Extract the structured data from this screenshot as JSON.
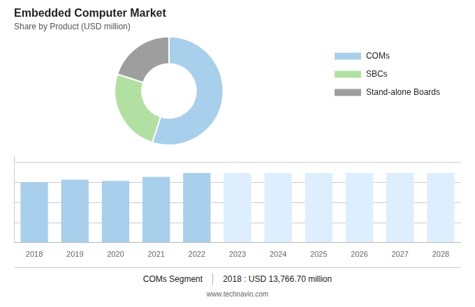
{
  "chart_data": [
    {
      "type": "doughnut",
      "title": "Embedded Computer Market",
      "subtitle": "Share by Product (USD million)",
      "categories": [
        "COMs",
        "SBCs",
        "Stand-alone Boards"
      ],
      "values": [
        55,
        25,
        20
      ],
      "colors": [
        "#a8cfeb",
        "#b2e0a2",
        "#9e9e9e"
      ],
      "legend": "right"
    },
    {
      "type": "bar",
      "categories": [
        "2018",
        "2019",
        "2020",
        "2021",
        "2022",
        "2023",
        "2024",
        "2025",
        "2026",
        "2027",
        "2028"
      ],
      "values": [
        13766.7,
        14400,
        14100,
        15000,
        15900,
        15900,
        15900,
        15900,
        15900,
        15900,
        15900
      ],
      "colors": [
        "#a8cfeb",
        "#a8cfeb",
        "#a8cfeb",
        "#a8cfeb",
        "#a8cfeb",
        "#ddeeff",
        "#ddeeff",
        "#ddeeff",
        "#ddeeff",
        "#ddeeff",
        "#ddeeff"
      ],
      "ylim": [
        0,
        19875
      ],
      "yticks": [
        0,
        4571.25,
        9142.5,
        13713.75,
        18285
      ],
      "grid": true,
      "tick_labels": "x",
      "annotations": [
        "COMs Segment",
        "2018 : USD 13,766.70 million",
        "www.technavio.com"
      ]
    }
  ]
}
